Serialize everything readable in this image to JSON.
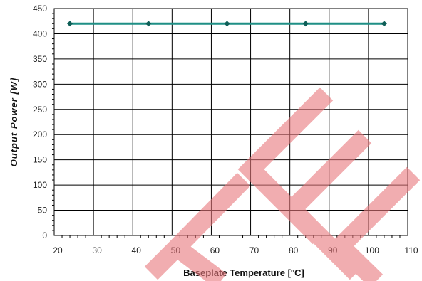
{
  "chart_data": {
    "type": "line",
    "title": "",
    "xlabel": "Baseplate Temperature [°C]",
    "ylabel": "Output Power [W]",
    "xlim": [
      20,
      110
    ],
    "ylim": [
      0,
      450
    ],
    "x_ticks": [
      20,
      30,
      40,
      50,
      60,
      70,
      80,
      90,
      100,
      110
    ],
    "y_ticks": [
      0,
      50,
      100,
      150,
      200,
      250,
      300,
      350,
      400,
      450
    ],
    "grid": true,
    "legend": "none",
    "series": [
      {
        "color": "#1f8f85",
        "x": [
          24,
          44,
          64,
          84,
          104
        ],
        "y": [
          420,
          420,
          420,
          420,
          420
        ]
      }
    ]
  },
  "watermark": {
    "text": "CE",
    "color": "#e8787c"
  }
}
